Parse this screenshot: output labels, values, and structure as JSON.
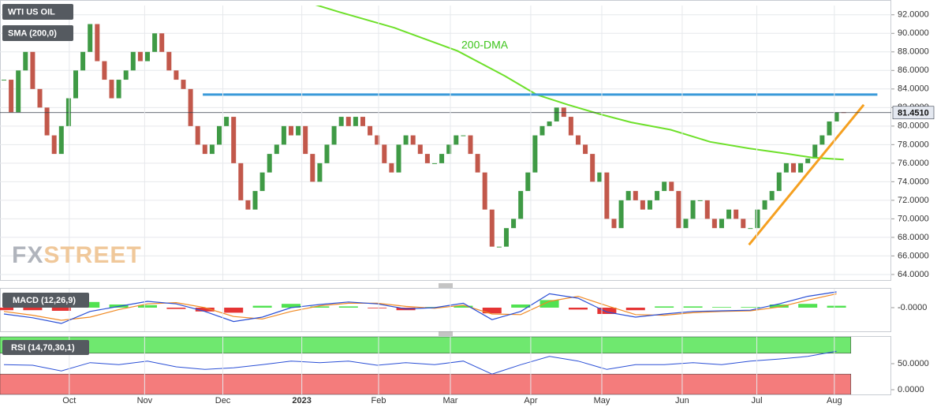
{
  "chart_data": [
    {
      "type": "candlestick",
      "name": "WTI US OIL",
      "close": [
        85,
        81.5,
        86,
        88,
        84,
        82,
        79,
        77,
        80,
        83,
        86,
        88,
        91,
        87,
        85,
        83,
        85,
        86,
        88,
        87,
        88,
        90,
        88,
        86,
        85,
        84,
        80,
        78,
        77,
        78,
        80,
        81,
        76,
        72,
        71,
        73,
        75,
        77,
        78,
        80,
        79,
        80,
        77,
        74,
        76,
        78,
        80,
        81,
        80,
        81,
        80,
        79,
        78,
        76,
        75,
        78,
        79,
        78,
        77,
        76,
        76,
        77,
        78,
        79,
        79,
        77,
        75,
        71,
        67,
        67,
        69,
        70,
        73,
        75,
        79,
        80,
        80.5,
        82,
        81,
        79,
        78,
        77,
        74,
        75,
        70,
        69,
        72,
        73,
        72,
        71,
        72,
        73,
        74,
        73,
        69,
        70,
        72,
        72,
        70,
        69,
        70,
        71,
        70,
        69,
        69,
        71,
        72,
        73,
        75,
        76,
        75,
        76,
        76.5,
        78,
        79,
        80.5,
        81.5,
        81.451
      ],
      "up_color": "#3f9a45",
      "down_color": "#c2584b",
      "xlim": [
        -0.55,
        123.63
      ],
      "xticks": [
        {
          "value": 9.1,
          "label": "Oct"
        },
        {
          "value": 19.6,
          "label": "Nov"
        },
        {
          "value": 30.5,
          "label": "Dec"
        },
        {
          "value": 41.5,
          "label": "2023"
        },
        {
          "value": 52.2,
          "label": "Feb"
        },
        {
          "value": 62.2,
          "label": "Mar"
        },
        {
          "value": 73.4,
          "label": "Apr"
        },
        {
          "value": 83.3,
          "label": "May"
        },
        {
          "value": 94.5,
          "label": "Jun"
        },
        {
          "value": 104.9,
          "label": "Jul"
        },
        {
          "value": 115.7,
          "label": "Aug"
        }
      ],
      "ylim": [
        63.4,
        93.0
      ],
      "yticks": [
        {
          "value": 64,
          "label": "64.0000"
        },
        {
          "value": 66,
          "label": "66.0000"
        },
        {
          "value": 68,
          "label": "68.0000"
        },
        {
          "value": 70,
          "label": "70.0000"
        },
        {
          "value": 72,
          "label": "72.0000"
        },
        {
          "value": 74,
          "label": "74.0000"
        },
        {
          "value": 76,
          "label": "76.0000"
        },
        {
          "value": 78,
          "label": "78.0000"
        },
        {
          "value": 80,
          "label": "80.0000"
        },
        {
          "value": 82,
          "label": "82.0000"
        },
        {
          "value": 84,
          "label": "84.0000"
        },
        {
          "value": 86,
          "label": "86.0000"
        },
        {
          "value": 88,
          "label": "88.0000"
        },
        {
          "value": 90,
          "label": "90.0000"
        },
        {
          "value": 92,
          "label": "92.0000"
        }
      ],
      "grid": true,
      "last_price": {
        "value": 81.451,
        "label": "81.4510"
      },
      "series": [
        {
          "name": "SMA (200,0)",
          "color": "#6ee02a",
          "x": [
            41.2,
            46.7,
            54.4,
            63.2,
            69.8,
            74.2,
            78.6,
            83,
            87.4,
            92.9,
            98.4,
            103.8,
            109.3,
            112.6,
            117
          ],
          "values": [
            93.6,
            92.3,
            90.6,
            88.1,
            85.4,
            83.4,
            82.3,
            81.3,
            80.4,
            79.6,
            78.3,
            77.6,
            77.0,
            76.6,
            76.4
          ]
        }
      ],
      "annotation": "200-DMA",
      "lines": [
        {
          "color": "#3a9ad9",
          "x": [
            27.7,
            121.7
          ],
          "values": [
            83.4,
            83.4
          ]
        },
        {
          "color": "#f5a020",
          "x": [
            103.8,
            119.8
          ],
          "values": [
            67.2,
            82.3
          ]
        }
      ],
      "watermark_fx": "FX",
      "watermark_street": "STREET"
    },
    {
      "type": "macd",
      "name": "MACD (12,26,9)",
      "x": [
        0,
        4,
        8,
        12,
        16,
        20,
        24,
        28,
        32,
        36,
        40,
        44,
        48,
        52,
        56,
        60,
        64,
        68,
        72,
        76,
        80,
        84,
        88,
        92,
        96,
        100,
        104,
        108,
        112,
        116
      ],
      "macd": [
        -1,
        -1.6,
        -2.5,
        -0.6,
        0.2,
        1,
        0.6,
        -0.6,
        -2.2,
        -1.5,
        0,
        0.5,
        0.9,
        0.6,
        -0.2,
        0,
        0.7,
        -1.9,
        -0.6,
        2.2,
        1.5,
        -0.7,
        -1.5,
        -1,
        -0.6,
        -0.5,
        -0.4,
        0.6,
        1.8,
        2.5
      ],
      "signal": [
        -0.6,
        -1.2,
        -2,
        -1.5,
        -0.3,
        0.6,
        0.8,
        0,
        -1.4,
        -1.8,
        -0.6,
        0.3,
        0.7,
        0.7,
        0.2,
        -0.1,
        0.4,
        -1.0,
        -1.1,
        1.0,
        1.8,
        0.3,
        -1.1,
        -1.2,
        -0.8,
        -0.6,
        -0.5,
        0.1,
        1.2,
        2.2
      ],
      "histogram": [
        -0.4,
        -0.4,
        -0.5,
        0.9,
        0.5,
        0.4,
        -0.2,
        -0.6,
        -0.8,
        0.3,
        0.6,
        0.2,
        0.2,
        -0.1,
        -0.4,
        0.1,
        0.3,
        -0.9,
        0.5,
        1.2,
        -0.3,
        -1.0,
        -0.4,
        0.2,
        0.2,
        0.1,
        0.1,
        0.5,
        0.6,
        0.3
      ],
      "macd_color": "#2a4fd6",
      "signal_color": "#f08a24",
      "up_color": "#33dd33",
      "down_color": "#e01010",
      "ylim": [
        -3.75,
        3
      ],
      "yticks": [
        {
          "value": 0,
          "label": "-0.0000"
        }
      ]
    },
    {
      "type": "rsi",
      "name": "RSI (14,70,30,1)",
      "x": [
        0,
        4,
        8,
        12,
        16,
        20,
        24,
        28,
        32,
        36,
        40,
        44,
        48,
        52,
        56,
        60,
        64,
        68,
        72,
        76,
        80,
        84,
        88,
        92,
        96,
        100,
        104,
        108,
        112,
        116
      ],
      "values": [
        48,
        47,
        36,
        52,
        48,
        55,
        44,
        39,
        42,
        48,
        55,
        52,
        55,
        47,
        52,
        48,
        55,
        30,
        48,
        64,
        55,
        39,
        48,
        48,
        52,
        48,
        55,
        59,
        64,
        74
      ],
      "color": "#2a4fd6",
      "upper": 70,
      "lower": 30,
      "upper_color": "#6fe86f",
      "lower_color": "#f47c7c",
      "ylim": [
        -9.1,
        101.5
      ],
      "yticks": [
        {
          "value": 50,
          "label": "50.0000"
        },
        {
          "value": 0,
          "label": "0.0000"
        }
      ]
    }
  ]
}
